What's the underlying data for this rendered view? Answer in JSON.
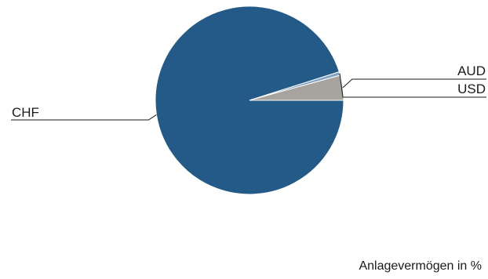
{
  "chart_data": {
    "type": "pie",
    "categories": [
      "CHF",
      "AUD",
      "USD"
    ],
    "values": [
      95.1,
      4.3,
      0.6
    ],
    "colors": [
      "#245a87",
      "#a7a39e",
      "#7fa3c4"
    ],
    "legend": "leader-lines",
    "caption": "Anlagevermögen in %"
  }
}
